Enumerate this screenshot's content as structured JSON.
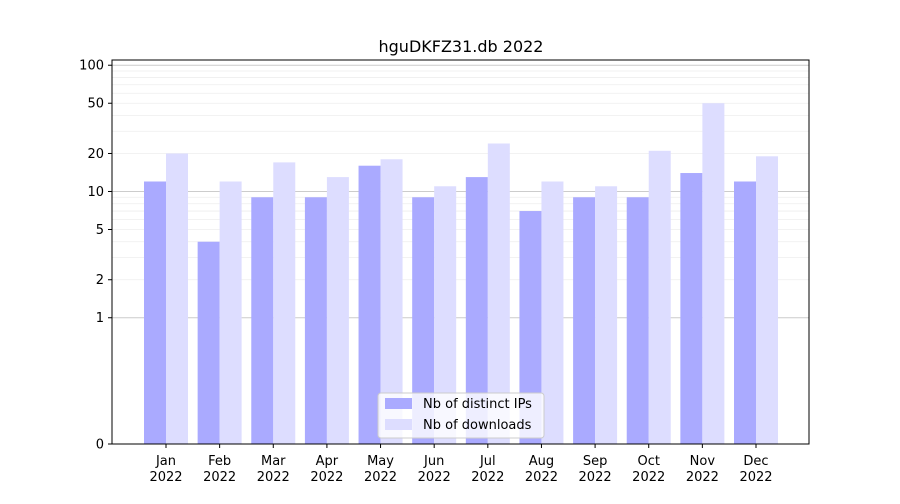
{
  "chart_data": {
    "type": "bar",
    "title": "hguDKFZ31.db 2022",
    "xlabel": "",
    "ylabel": "",
    "yscale": "symlog",
    "ylim": [
      0,
      110
    ],
    "yticks": [
      0,
      1,
      2,
      5,
      10,
      20,
      50,
      100
    ],
    "grid": "y",
    "legend_position": "lower-center",
    "categories": [
      "Jan\n2022",
      "Feb\n2022",
      "Mar\n2022",
      "Apr\n2022",
      "May\n2022",
      "Jun\n2022",
      "Jul\n2022",
      "Aug\n2022",
      "Sep\n2022",
      "Oct\n2022",
      "Nov\n2022",
      "Dec\n2022"
    ],
    "series": [
      {
        "name": "Nb of distinct IPs",
        "color": "#aaaaff",
        "values": [
          12,
          4,
          9,
          9,
          16,
          9,
          13,
          7,
          9,
          9,
          14,
          12
        ]
      },
      {
        "name": "Nb of downloads",
        "color": "#ddddff",
        "values": [
          20,
          12,
          17,
          13,
          18,
          11,
          24,
          12,
          11,
          21,
          50,
          19
        ]
      }
    ]
  }
}
